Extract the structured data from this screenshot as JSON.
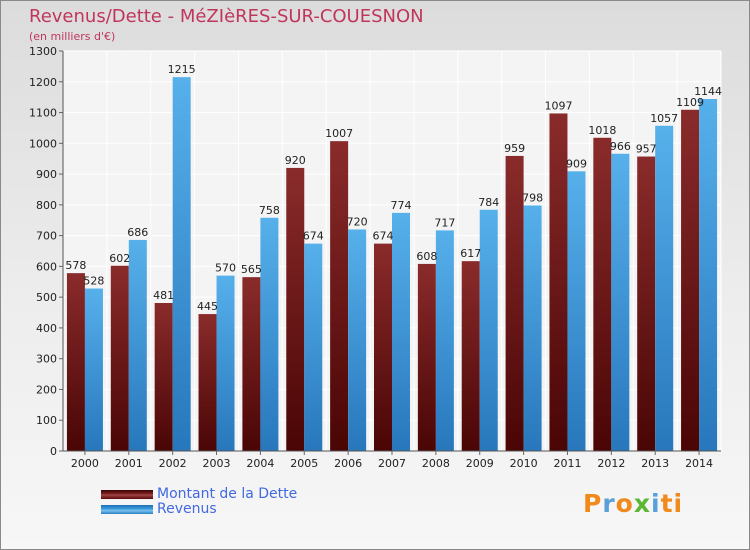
{
  "chart_data": {
    "type": "bar",
    "title": "Revenus/Dette - MéZIèRES-SUR-COUESNON",
    "subtitle": "(en milliers d'€)",
    "xlabel": "",
    "ylabel": "",
    "ylim": [
      0,
      1300
    ],
    "yticks": [
      0,
      100,
      200,
      300,
      400,
      500,
      600,
      700,
      800,
      900,
      1000,
      1100,
      1200,
      1300
    ],
    "grid": true,
    "categories": [
      "2000",
      "2001",
      "2002",
      "2003",
      "2004",
      "2005",
      "2006",
      "2007",
      "2008",
      "2009",
      "2010",
      "2011",
      "2012",
      "2013",
      "2014"
    ],
    "series": [
      {
        "name": "Montant de la Dette",
        "color": "#7a1f1f",
        "values": [
          578,
          602,
          481,
          445,
          565,
          920,
          1007,
          674,
          608,
          617,
          959,
          1097,
          1018,
          957,
          1109
        ],
        "labels": [
          "578",
          "602",
          "481",
          "445",
          "565",
          "920",
          "1007",
          "674",
          "608",
          "617",
          "959",
          "1097",
          "1018",
          "957",
          "1109"
        ]
      },
      {
        "name": "Revenus",
        "color": "#3d9ee0",
        "values": [
          528,
          686,
          1215,
          570,
          758,
          674,
          720,
          774,
          717,
          784,
          798,
          909,
          966,
          1057,
          1144
        ],
        "labels": [
          "528",
          "686",
          "1215",
          "570",
          "758",
          "674",
          "720",
          "774",
          "717",
          "784",
          "798",
          "909",
          "966",
          "1057",
          "1144"
        ]
      }
    ]
  },
  "legend": {
    "placement": "bottom-left",
    "items": [
      {
        "label": "Montant de la Dette",
        "color": "#7a1f1f"
      },
      {
        "label": "Revenus",
        "color": "#3d9ee0"
      }
    ]
  },
  "logo": {
    "letters": [
      "P",
      "r",
      "o",
      "x",
      "i",
      "ti"
    ]
  }
}
